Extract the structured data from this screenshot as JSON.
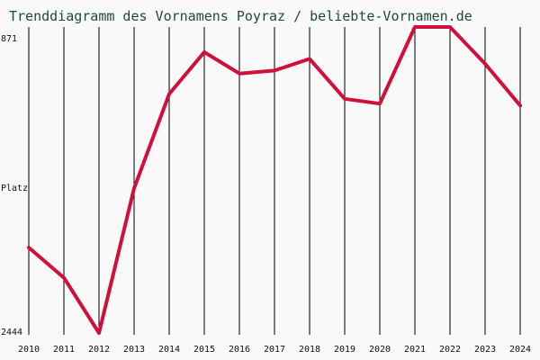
{
  "chart_data": {
    "type": "line",
    "title": "Trenddiagramm des Vornamens Poyraz / beliebte-Vornamen.de",
    "ylabel": "Platz",
    "y_inverted": true,
    "ylim": [
      871,
      2444
    ],
    "y_tick_labels": [
      "871",
      "2444"
    ],
    "categories": [
      "2010",
      "2011",
      "2012",
      "2013",
      "2014",
      "2015",
      "2016",
      "2017",
      "2018",
      "2019",
      "2020",
      "2021",
      "2022",
      "2023",
      "2024"
    ],
    "series": [
      {
        "color": "#d0103a",
        "values": [
          2005,
          2160,
          2444,
          1700,
          1215,
          1000,
          1110,
          1095,
          1035,
          1240,
          1265,
          871,
          871,
          1060,
          1275
        ]
      }
    ],
    "grid": true
  }
}
